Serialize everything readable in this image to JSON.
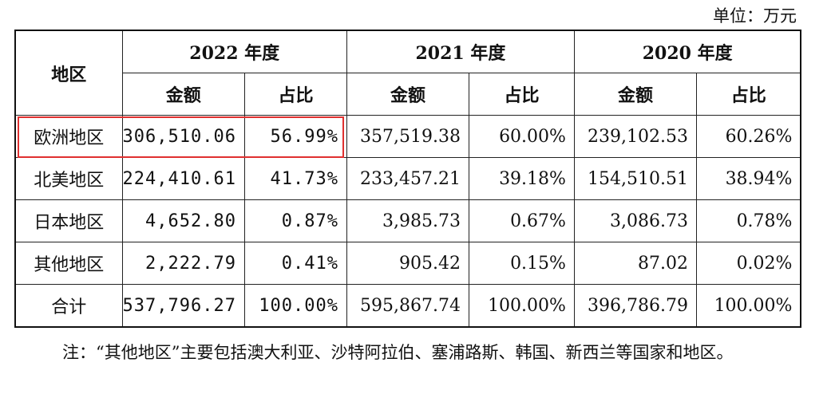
{
  "unit": "单位：万元",
  "table": {
    "region_header": "地区",
    "years": [
      "2022 年度",
      "2021 年度",
      "2020 年度"
    ],
    "sub_headers": [
      "金额",
      "占比",
      "金额",
      "占比",
      "金额",
      "占比"
    ],
    "rows": [
      {
        "region": "欧洲地区",
        "values": [
          "306,510.06",
          "56.99%",
          "357,519.38",
          "60.00%",
          "239,102.53",
          "60.26%"
        ],
        "highlighted": true
      },
      {
        "region": "北美地区",
        "values": [
          "224,410.61",
          "41.73%",
          "233,457.21",
          "39.18%",
          "154,510.51",
          "38.94%"
        ]
      },
      {
        "region": "日本地区",
        "values": [
          "4,652.80",
          "0.87%",
          "3,985.73",
          "0.67%",
          "3,086.73",
          "0.78%"
        ]
      },
      {
        "region": "其他地区",
        "values": [
          "2,222.79",
          "0.41%",
          "905.42",
          "0.15%",
          "87.02",
          "0.02%"
        ]
      },
      {
        "region": "合计",
        "values": [
          "537,796.27",
          "100.00%",
          "595,867.74",
          "100.00%",
          "396,786.79",
          "100.00%"
        ],
        "total": true
      }
    ]
  },
  "highlight_color": "#e0302f",
  "note": "注：“其他地区”主要包括澳大利亚、沙特阿拉伯、塞浦路斯、韩国、新西兰等国家和地区。"
}
